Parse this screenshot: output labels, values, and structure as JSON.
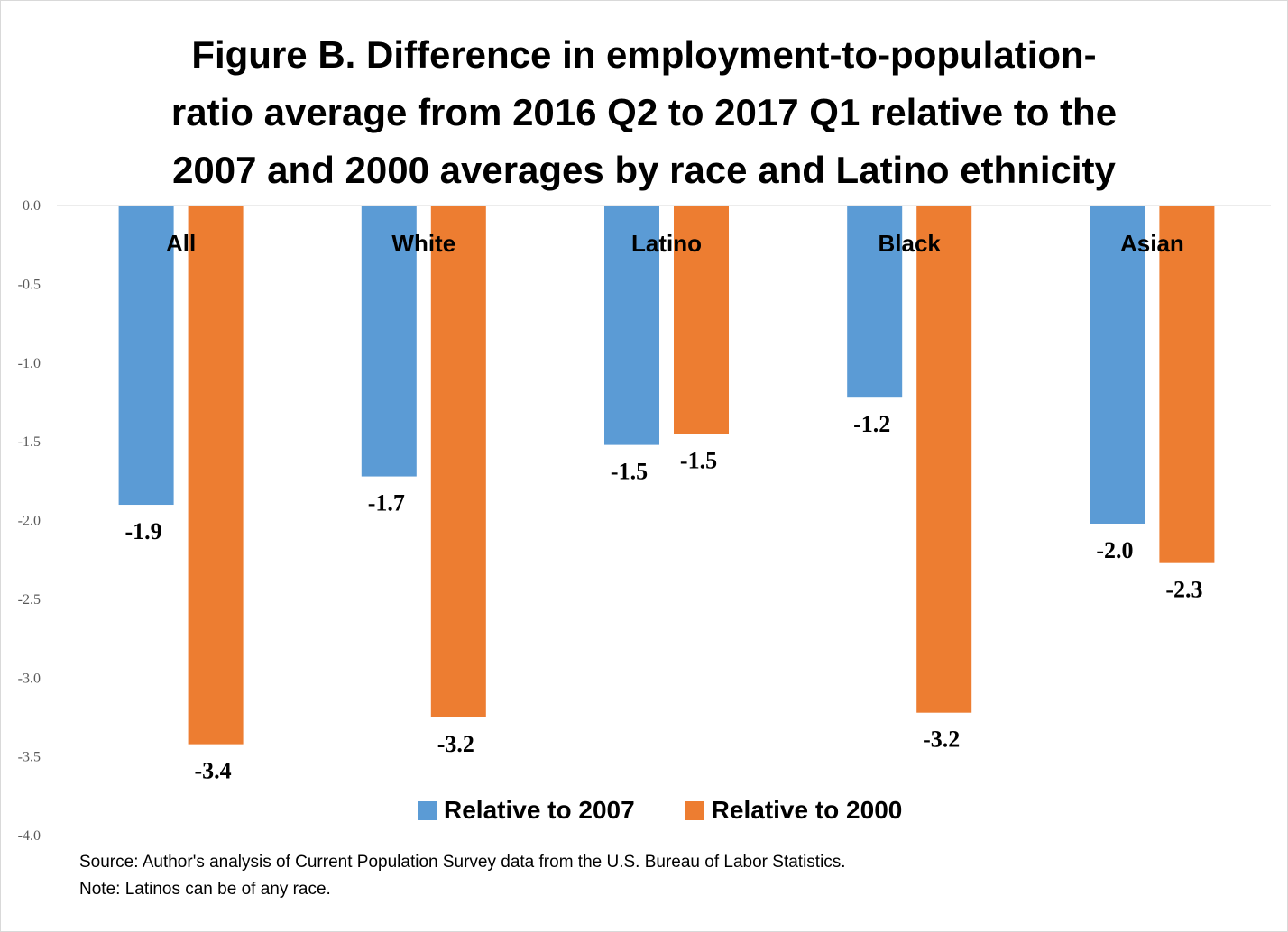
{
  "title_lines": [
    "Figure B. Difference in employment-to-population-",
    "ratio average from 2016 Q2 to 2017 Q1 relative to the",
    "2007 and 2000 averages by race and Latino ethnicity"
  ],
  "colors": {
    "relative_2007": "#5b9bd5",
    "relative_2000": "#ed7d31",
    "gridline": "#d9d9d9"
  },
  "legend": {
    "relative_2007": "Relative to 2007",
    "relative_2000": "Relative to 2000"
  },
  "notes": {
    "source": "Source: Author's analysis of Current Population Survey data from the U.S. Bureau of Labor Statistics.",
    "note": "Note: Latinos can be of any race."
  },
  "chart_data": {
    "type": "bar",
    "title": "Figure B. Difference in employment-to-population-ratio average from 2016 Q2 to 2017 Q1 relative to the 2007 and 2000 averages by race and Latino ethnicity",
    "categories": [
      "All",
      "White",
      "Latino",
      "Black",
      "Asian"
    ],
    "series": [
      {
        "name": "Relative to 2007",
        "values": [
          -1.9,
          -1.72,
          -1.52,
          -1.22,
          -2.02
        ],
        "labels": [
          "-1.9",
          "-1.7",
          "-1.5",
          "-1.2",
          "-2.0"
        ]
      },
      {
        "name": "Relative to 2000",
        "values": [
          -3.42,
          -3.25,
          -1.45,
          -3.22,
          -2.27
        ],
        "labels": [
          "-3.4",
          "-3.2",
          "-1.5",
          "-3.2",
          "-2.3"
        ]
      }
    ],
    "yticks": [
      "0.0",
      "-0.5",
      "-1.0",
      "-1.5",
      "-2.0",
      "-2.5",
      "-3.0",
      "-3.5",
      "-4.0"
    ],
    "ylim": [
      -4.0,
      0.0
    ],
    "xlabel": "",
    "ylabel": "",
    "grid": false,
    "legend_position": "bottom"
  }
}
